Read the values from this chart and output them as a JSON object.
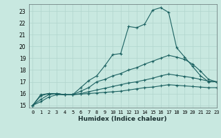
{
  "xlabel": "Humidex (Indice chaleur)",
  "bg_color": "#c8e8e0",
  "grid_color": "#b0d4cc",
  "line_color": "#1a6060",
  "xlim": [
    -0.5,
    23
  ],
  "ylim": [
    14.8,
    23.6
  ],
  "xticks": [
    0,
    1,
    2,
    3,
    4,
    5,
    6,
    7,
    8,
    9,
    10,
    11,
    12,
    13,
    14,
    15,
    16,
    17,
    18,
    19,
    20,
    21,
    22,
    23
  ],
  "yticks": [
    15,
    16,
    17,
    18,
    19,
    20,
    21,
    22,
    23
  ],
  "lines": [
    {
      "x": [
        0,
        1,
        2,
        3,
        4,
        5,
        6,
        7,
        8,
        9,
        10,
        11,
        12,
        13,
        14,
        15,
        16,
        17,
        18,
        19,
        20,
        21,
        22,
        23
      ],
      "y": [
        15,
        15.9,
        16.0,
        16.0,
        15.9,
        15.9,
        16.5,
        17.1,
        17.5,
        18.35,
        19.3,
        19.4,
        21.7,
        21.6,
        21.9,
        23.1,
        23.3,
        22.9,
        19.9,
        19.1,
        18.3,
        17.5,
        17.0,
        17.0
      ]
    },
    {
      "x": [
        0,
        1,
        2,
        3,
        4,
        5,
        6,
        7,
        8,
        9,
        10,
        11,
        12,
        13,
        14,
        15,
        16,
        17,
        18,
        19,
        20,
        21,
        22,
        23
      ],
      "y": [
        15,
        15.8,
        16.0,
        16.0,
        15.9,
        15.9,
        16.2,
        16.5,
        17.0,
        17.2,
        17.5,
        17.7,
        18.0,
        18.2,
        18.5,
        18.75,
        19.0,
        19.25,
        19.1,
        18.9,
        18.5,
        17.9,
        17.2,
        17.0
      ]
    },
    {
      "x": [
        0,
        1,
        2,
        3,
        4,
        5,
        6,
        7,
        8,
        9,
        10,
        11,
        12,
        13,
        14,
        15,
        16,
        17,
        18,
        19,
        20,
        21,
        22,
        23
      ],
      "y": [
        15,
        15.5,
        15.9,
        16.0,
        15.9,
        15.9,
        16.0,
        16.15,
        16.3,
        16.45,
        16.6,
        16.75,
        16.9,
        17.0,
        17.15,
        17.3,
        17.5,
        17.65,
        17.55,
        17.45,
        17.35,
        17.2,
        17.05,
        17.0
      ]
    },
    {
      "x": [
        0,
        1,
        2,
        3,
        4,
        5,
        6,
        7,
        8,
        9,
        10,
        11,
        12,
        13,
        14,
        15,
        16,
        17,
        18,
        19,
        20,
        21,
        22,
        23
      ],
      "y": [
        15,
        15.3,
        15.7,
        15.9,
        15.9,
        15.9,
        15.95,
        16.0,
        16.05,
        16.1,
        16.15,
        16.2,
        16.3,
        16.4,
        16.5,
        16.55,
        16.65,
        16.75,
        16.7,
        16.65,
        16.6,
        16.55,
        16.5,
        16.5
      ]
    }
  ]
}
